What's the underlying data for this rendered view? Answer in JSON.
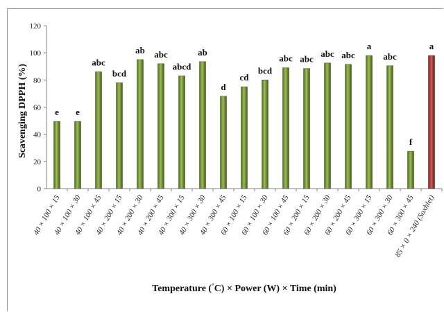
{
  "chart_data": {
    "type": "bar",
    "ylabel": "Scavenging DPPH (%)",
    "xlabel_prefix": "Temperature (",
    "xlabel_degree": "°",
    "xlabel_suffix": "C) × Power (W) × Time (min)",
    "ylim": [
      0,
      120
    ],
    "yticks": [
      0,
      20,
      40,
      60,
      80,
      100,
      120
    ],
    "grid": false,
    "legend": "none",
    "categories": [
      "40 × 100 × 15",
      "40 × 100 × 30",
      "40 × 100 × 45",
      "40 × 200 × 15",
      "40 × 200 × 30",
      "40 × 200 × 45",
      "40 × 300 × 15",
      "40 × 300 × 30",
      "40 × 300 × 45",
      "60 × 100 × 15",
      "60 × 100 × 30",
      "60 × 100 × 45",
      "60 × 200 × 15",
      "60 × 200 × 30",
      "60 × 200 × 45",
      "60 × 300 × 15",
      "60 × 300 × 30",
      "60 × 300 × 45",
      "85 × 0 × 240 (Soxhlet)"
    ],
    "values": [
      49.5,
      49.5,
      86,
      78,
      95,
      92,
      83,
      93.5,
      68,
      75,
      80,
      89,
      88.5,
      92.5,
      91.5,
      98,
      90.5,
      27.5,
      98
    ],
    "significance": [
      "e",
      "e",
      "abc",
      "bcd",
      "ab",
      "abc",
      "abcd",
      "ab",
      "d",
      "cd",
      "bcd",
      "abc",
      "abc",
      "abc",
      "abc",
      "a",
      "abc",
      "f",
      "a"
    ],
    "bar_colors": [
      "#7a9a3a",
      "#7a9a3a",
      "#7a9a3a",
      "#7a9a3a",
      "#7a9a3a",
      "#7a9a3a",
      "#7a9a3a",
      "#7a9a3a",
      "#7a9a3a",
      "#7a9a3a",
      "#7a9a3a",
      "#7a9a3a",
      "#7a9a3a",
      "#7a9a3a",
      "#7a9a3a",
      "#7a9a3a",
      "#7a9a3a",
      "#7a9a3a",
      "#b03838"
    ]
  }
}
